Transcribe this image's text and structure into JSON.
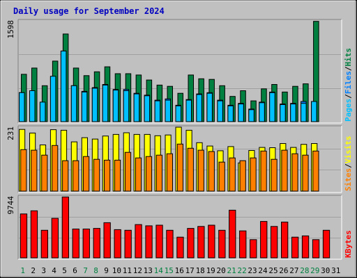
{
  "title": "Daily usage for September 2024",
  "colors": {
    "background": "#c0c0c0",
    "title": "#0000c0",
    "hits": "#008040",
    "files": "#0080ff",
    "pages": "#00c0ff",
    "visits": "#ffff00",
    "sites": "#ff8000",
    "kbytes": "#ff0000",
    "weekend_label": "#008040",
    "weekday_label": "#000000"
  },
  "chart_data": [
    {
      "type": "bar",
      "panel": "top",
      "ymax_label": "1598",
      "ylim": [
        0,
        1598
      ],
      "legend": [
        {
          "name": "Pages",
          "color": "#00c0ff"
        },
        {
          "name": "Files",
          "color": "#0080ff"
        },
        {
          "name": "Hits",
          "color": "#008040"
        }
      ],
      "categories": [
        "1",
        "2",
        "3",
        "4",
        "5",
        "6",
        "7",
        "8",
        "9",
        "10",
        "11",
        "12",
        "13",
        "14",
        "15",
        "16",
        "17",
        "18",
        "19",
        "20",
        "21",
        "22",
        "23",
        "24",
        "25",
        "26",
        "27",
        "28",
        "29",
        "30",
        "31"
      ],
      "series": [
        {
          "name": "Hits",
          "values": [
            750,
            850,
            570,
            960,
            1390,
            850,
            730,
            790,
            870,
            760,
            760,
            740,
            660,
            580,
            560,
            450,
            740,
            680,
            670,
            570,
            400,
            490,
            330,
            520,
            590,
            470,
            560,
            600,
            1590,
            0,
            0
          ]
        },
        {
          "name": "Files",
          "values": [
            460,
            490,
            300,
            710,
            1120,
            570,
            480,
            540,
            590,
            510,
            510,
            450,
            420,
            340,
            360,
            260,
            350,
            440,
            460,
            340,
            260,
            290,
            200,
            310,
            470,
            280,
            290,
            320,
            310,
            0,
            0
          ]
        },
        {
          "name": "Pages",
          "values": [
            460,
            490,
            310,
            720,
            1120,
            570,
            470,
            530,
            580,
            500,
            490,
            440,
            410,
            330,
            340,
            250,
            340,
            430,
            450,
            330,
            250,
            280,
            190,
            300,
            460,
            270,
            280,
            290,
            320,
            0,
            0
          ]
        }
      ]
    },
    {
      "type": "bar",
      "panel": "middle",
      "ymax_label": "231",
      "ylim": [
        0,
        231
      ],
      "legend": [
        {
          "name": "Sites",
          "color": "#ff8000"
        },
        {
          "name": "Visits",
          "color": "#ffff00"
        }
      ],
      "categories": [
        "1",
        "2",
        "3",
        "4",
        "5",
        "6",
        "7",
        "8",
        "9",
        "10",
        "11",
        "12",
        "13",
        "14",
        "15",
        "16",
        "17",
        "18",
        "19",
        "20",
        "21",
        "22",
        "23",
        "24",
        "25",
        "26",
        "27",
        "28",
        "29",
        "30",
        "31"
      ],
      "series": [
        {
          "name": "Visits",
          "values": [
            223,
            210,
            167,
            222,
            220,
            178,
            193,
            188,
            199,
            205,
            211,
            205,
            205,
            200,
            203,
            231,
            220,
            175,
            163,
            146,
            161,
            102,
            147,
            158,
            157,
            172,
            158,
            169,
            172,
            0,
            0
          ]
        },
        {
          "name": "Sites",
          "values": [
            150,
            148,
            130,
            165,
            110,
            110,
            125,
            115,
            112,
            112,
            140,
            120,
            125,
            130,
            135,
            170,
            155,
            148,
            143,
            105,
            120,
            110,
            120,
            145,
            115,
            148,
            135,
            130,
            145,
            0,
            0
          ]
        }
      ]
    },
    {
      "type": "bar",
      "panel": "bottom",
      "ymax_label": "9744",
      "ylim": [
        0,
        9744
      ],
      "legend": [
        {
          "name": "KBytes",
          "color": "#ff0000"
        }
      ],
      "categories": [
        "1",
        "2",
        "3",
        "4",
        "5",
        "6",
        "7",
        "8",
        "9",
        "10",
        "11",
        "12",
        "13",
        "14",
        "15",
        "16",
        "17",
        "18",
        "19",
        "20",
        "21",
        "22",
        "23",
        "24",
        "25",
        "26",
        "27",
        "28",
        "29",
        "30",
        "31"
      ],
      "series": [
        {
          "name": "KBytes",
          "values": [
            7000,
            7500,
            4400,
            6300,
            9700,
            4600,
            4600,
            4700,
            5600,
            4500,
            4400,
            5300,
            5100,
            5200,
            4400,
            3300,
            4700,
            5000,
            5200,
            4400,
            7600,
            4300,
            2900,
            5800,
            5000,
            5700,
            3300,
            3500,
            2900,
            4400,
            0
          ]
        }
      ]
    }
  ],
  "x_labels": [
    {
      "label": "1",
      "weekend": true
    },
    {
      "label": "2",
      "weekend": false
    },
    {
      "label": "3",
      "weekend": false
    },
    {
      "label": "4",
      "weekend": false
    },
    {
      "label": "5",
      "weekend": false
    },
    {
      "label": "6",
      "weekend": false
    },
    {
      "label": "7",
      "weekend": true
    },
    {
      "label": "8",
      "weekend": true
    },
    {
      "label": "9",
      "weekend": false
    },
    {
      "label": "10",
      "weekend": false
    },
    {
      "label": "11",
      "weekend": false
    },
    {
      "label": "12",
      "weekend": false
    },
    {
      "label": "13",
      "weekend": false
    },
    {
      "label": "14",
      "weekend": true
    },
    {
      "label": "15",
      "weekend": true
    },
    {
      "label": "16",
      "weekend": false
    },
    {
      "label": "17",
      "weekend": false
    },
    {
      "label": "18",
      "weekend": false
    },
    {
      "label": "19",
      "weekend": false
    },
    {
      "label": "20",
      "weekend": false
    },
    {
      "label": "21",
      "weekend": true
    },
    {
      "label": "22",
      "weekend": true
    },
    {
      "label": "23",
      "weekend": false
    },
    {
      "label": "24",
      "weekend": false
    },
    {
      "label": "25",
      "weekend": false
    },
    {
      "label": "26",
      "weekend": false
    },
    {
      "label": "27",
      "weekend": false
    },
    {
      "label": "28",
      "weekend": true
    },
    {
      "label": "29",
      "weekend": true
    },
    {
      "label": "30",
      "weekend": false
    },
    {
      "label": "31",
      "weekend": false
    }
  ]
}
